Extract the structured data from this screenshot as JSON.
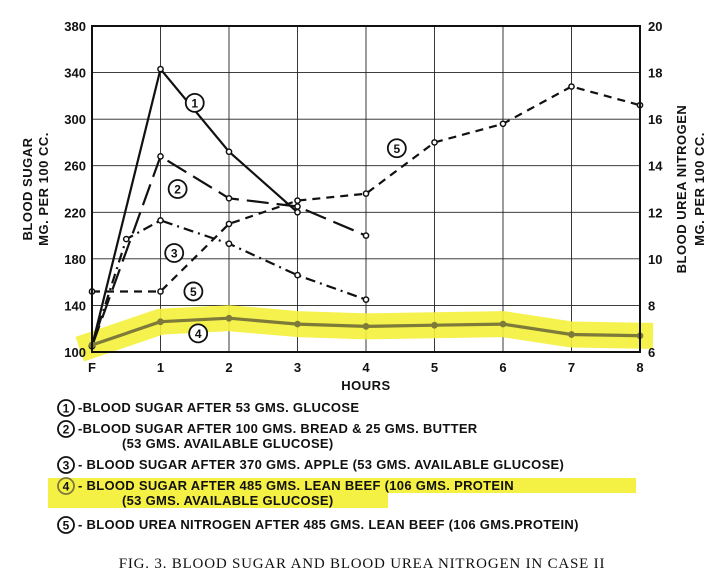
{
  "chart_data": {
    "type": "line",
    "x_categories": [
      "F",
      "1",
      "2",
      "3",
      "4",
      "5",
      "6",
      "7",
      "8"
    ],
    "x_values": [
      0,
      1,
      2,
      3,
      4,
      5,
      6,
      7,
      8
    ],
    "xlabel": "HOURS",
    "ylabel_left": [
      "BLOOD SUGAR",
      "MG. PER 100 CC."
    ],
    "ylabel_right": [
      "BLOOD UREA NITROGEN",
      "MG. PER 100 CC."
    ],
    "ylim_left": [
      100,
      380
    ],
    "yticks_left": [
      100,
      140,
      180,
      220,
      260,
      300,
      340,
      380
    ],
    "ylim_right": [
      6,
      20
    ],
    "yticks_right": [
      6,
      8,
      10,
      12,
      14,
      16,
      18,
      20
    ],
    "xlim": [
      0,
      8
    ],
    "grid": true,
    "series": [
      {
        "label": "1",
        "axis": "left",
        "style": "solid",
        "highlight": false,
        "x": [
          0,
          1,
          2,
          3
        ],
        "y": [
          105,
          343,
          272,
          220
        ]
      },
      {
        "label": "2",
        "axis": "left",
        "style": "longdash",
        "highlight": false,
        "x": [
          0,
          1,
          2,
          3,
          4
        ],
        "y": [
          105,
          268,
          232,
          225,
          200
        ]
      },
      {
        "label": "3",
        "axis": "left",
        "style": "dashdot",
        "highlight": false,
        "x": [
          0,
          0.5,
          1,
          2,
          3,
          4
        ],
        "y": [
          105,
          197,
          213,
          193,
          166,
          145
        ]
      },
      {
        "label": "4",
        "axis": "left",
        "style": "solid",
        "highlight": true,
        "x": [
          0,
          1,
          2,
          3,
          4,
          5,
          6,
          7,
          8
        ],
        "y": [
          106,
          126,
          129,
          124,
          122,
          123,
          124,
          115,
          114
        ]
      },
      {
        "label": "5",
        "axis": "right",
        "style": "shortdash",
        "highlight": false,
        "x": [
          0,
          1,
          2,
          3,
          4,
          5,
          6,
          7,
          8
        ],
        "y": [
          8.6,
          8.6,
          11.5,
          12.5,
          12.8,
          15,
          15.8,
          17.4,
          16.6
        ]
      }
    ],
    "series_callouts": [
      {
        "num": "1",
        "x": 1.5,
        "y": 314
      },
      {
        "num": "2",
        "x": 1.25,
        "y": 240
      },
      {
        "num": "3",
        "x": 1.2,
        "y": 185
      },
      {
        "num": "4",
        "x": 1.55,
        "y": 116
      },
      {
        "num": "5",
        "x": 1.48,
        "y": 152
      },
      {
        "num": "5",
        "x": 4.45,
        "y": 275
      }
    ],
    "legend": [
      {
        "num": "1",
        "lines": [
          "-BLOOD SUGAR AFTER 53 GMS. GLUCOSE"
        ],
        "highlight": false
      },
      {
        "num": "2",
        "lines": [
          "-BLOOD SUGAR AFTER 100 GMS. BREAD & 25 GMS. BUTTER",
          "(53 GMS. AVAILABLE GLUCOSE)"
        ],
        "highlight": false
      },
      {
        "num": "3",
        "lines": [
          "- BLOOD SUGAR AFTER 370 GMS. APPLE (53 GMS. AVAILABLE GLUCOSE)"
        ],
        "highlight": false
      },
      {
        "num": "4",
        "lines": [
          "- BLOOD SUGAR AFTER 485 GMS. LEAN BEEF (106 GMS. PROTEIN",
          "(53 GMS. AVAILABLE GLUCOSE)"
        ],
        "highlight": true
      },
      {
        "num": "5",
        "lines": [
          "- BLOOD UREA NITROGEN AFTER 485 GMS. LEAN BEEF (106 GMS.PROTEIN)"
        ],
        "highlight": false
      }
    ],
    "caption": "FIG. 3. BLOOD SUGAR AND BLOOD UREA NITROGEN IN CASE II",
    "colors": {
      "line": "#111111",
      "highlight": "#f4ef3a",
      "series4": "#7d7a3a"
    }
  }
}
